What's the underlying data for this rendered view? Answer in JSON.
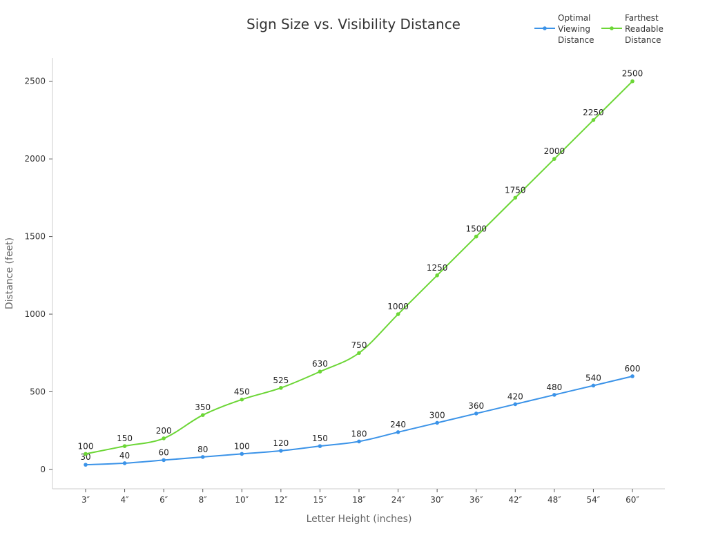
{
  "chart_data": {
    "type": "line",
    "title": "Sign Size vs. Visibility Distance",
    "xlabel": "Letter Height (inches)",
    "ylabel": "Distance (feet)",
    "categories": [
      "3″",
      "4″",
      "6″",
      "8″",
      "10″",
      "12″",
      "15″",
      "18″",
      "24″",
      "30″",
      "36″",
      "42″",
      "48″",
      "54″",
      "60″"
    ],
    "ylim": [
      -125,
      2650
    ],
    "yticks": [
      0,
      500,
      1000,
      1500,
      2000,
      2500
    ],
    "grid": false,
    "legend": "top-right",
    "series": [
      {
        "name": "Optimal Viewing Distance",
        "legend_lines": [
          "Optimal",
          "Viewing",
          "Distance"
        ],
        "color": "#3b93e8",
        "values": [
          30,
          40,
          60,
          80,
          100,
          120,
          150,
          180,
          240,
          300,
          360,
          420,
          480,
          540,
          600
        ]
      },
      {
        "name": "Farthest Readable Distance",
        "legend_lines": [
          "Farthest",
          "Readable",
          "Distance"
        ],
        "color": "#6cd636",
        "values": [
          100,
          150,
          200,
          350,
          450,
          525,
          630,
          750,
          1000,
          1250,
          1500,
          1750,
          2000,
          2250,
          2500
        ]
      }
    ]
  }
}
